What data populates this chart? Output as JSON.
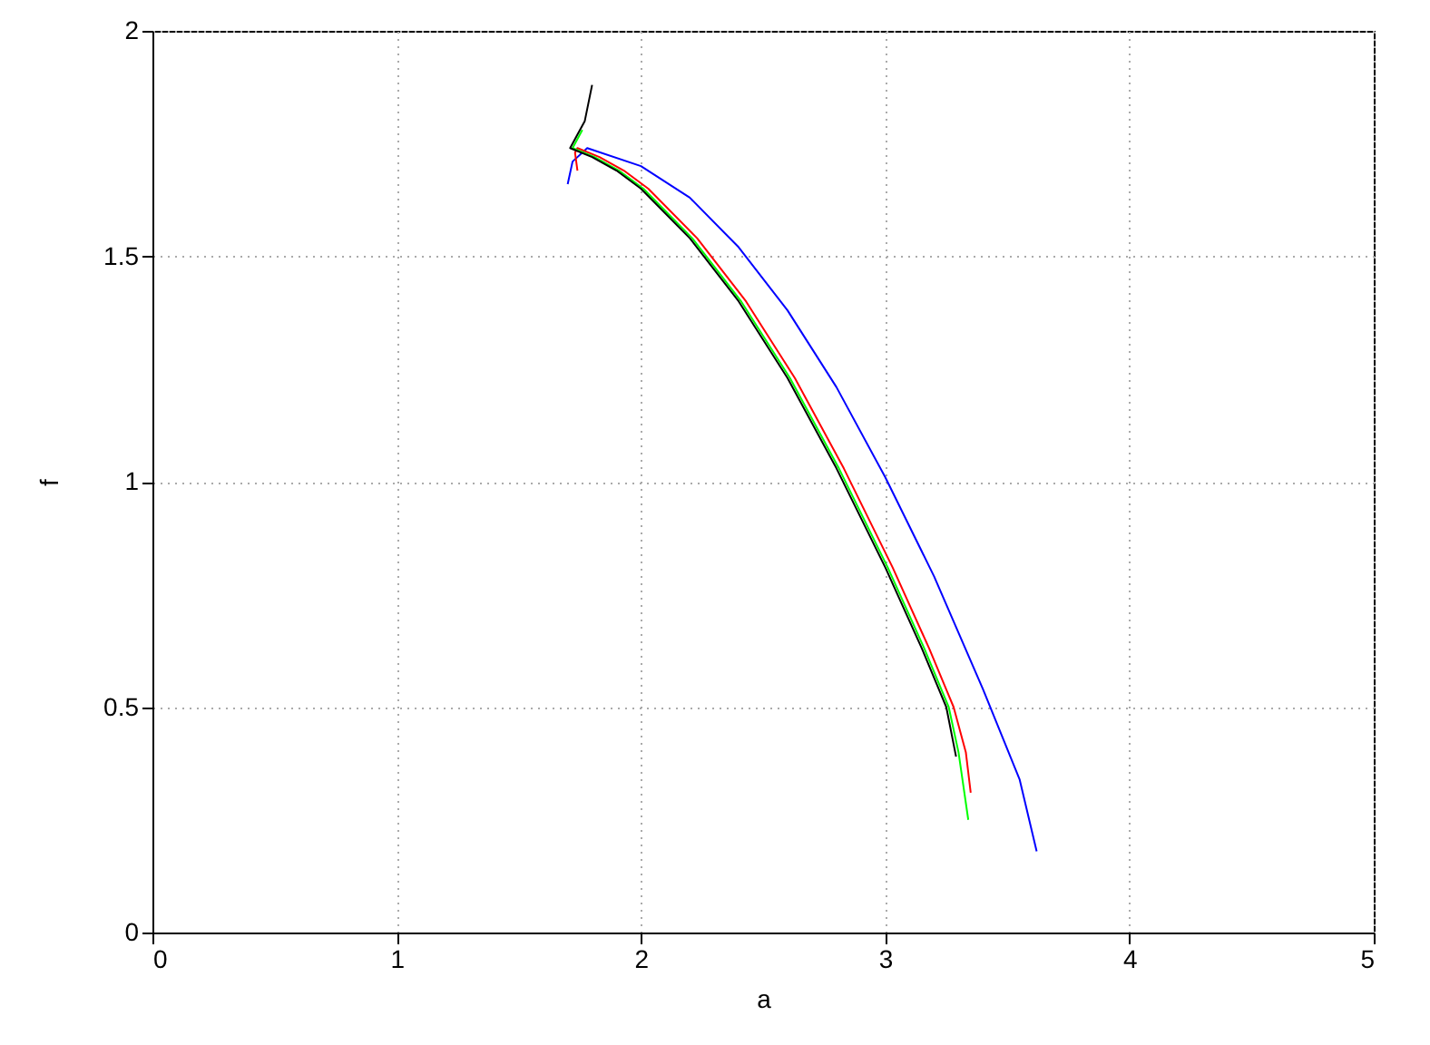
{
  "chart_data": {
    "type": "line",
    "xlabel": "a",
    "ylabel": "f",
    "xlim": [
      0,
      5
    ],
    "ylim": [
      0,
      2
    ],
    "xticks": [
      0,
      1,
      2,
      3,
      4,
      5
    ],
    "yticks": [
      0,
      0.5,
      1,
      1.5,
      2
    ],
    "grid": true,
    "legend": false,
    "series": [
      {
        "color": "#0000ff",
        "x": [
          1.7,
          1.72,
          1.78,
          2.0,
          2.2,
          2.4,
          2.6,
          2.8,
          3.0,
          3.2,
          3.4,
          3.55,
          3.62
        ],
        "values": [
          1.66,
          1.71,
          1.74,
          1.7,
          1.63,
          1.52,
          1.38,
          1.21,
          1.01,
          0.79,
          0.54,
          0.34,
          0.18
        ]
      },
      {
        "color": "#ff0000",
        "x": [
          1.74,
          1.73,
          1.74,
          1.83,
          1.93,
          2.03,
          2.23,
          2.43,
          2.63,
          2.83,
          3.03,
          3.18,
          3.28,
          3.33,
          3.35
        ],
        "values": [
          1.69,
          1.73,
          1.74,
          1.72,
          1.69,
          1.65,
          1.54,
          1.4,
          1.23,
          1.03,
          0.81,
          0.63,
          0.5,
          0.4,
          0.31
        ]
      },
      {
        "color": "#00ff00",
        "x": [
          1.76,
          1.73,
          1.72,
          1.81,
          1.91,
          2.01,
          2.21,
          2.41,
          2.61,
          2.81,
          3.01,
          3.16,
          3.26,
          3.3,
          3.34
        ],
        "values": [
          1.78,
          1.75,
          1.74,
          1.72,
          1.69,
          1.65,
          1.54,
          1.4,
          1.23,
          1.03,
          0.81,
          0.63,
          0.5,
          0.4,
          0.25
        ]
      },
      {
        "color": "#000000",
        "x": [
          1.8,
          1.77,
          1.72,
          1.71,
          1.8,
          1.9,
          2.0,
          2.2,
          2.4,
          2.6,
          2.8,
          3.0,
          3.15,
          3.25,
          3.29
        ],
        "values": [
          1.88,
          1.8,
          1.75,
          1.74,
          1.72,
          1.69,
          1.65,
          1.54,
          1.4,
          1.23,
          1.03,
          0.81,
          0.63,
          0.5,
          0.39
        ]
      }
    ]
  }
}
